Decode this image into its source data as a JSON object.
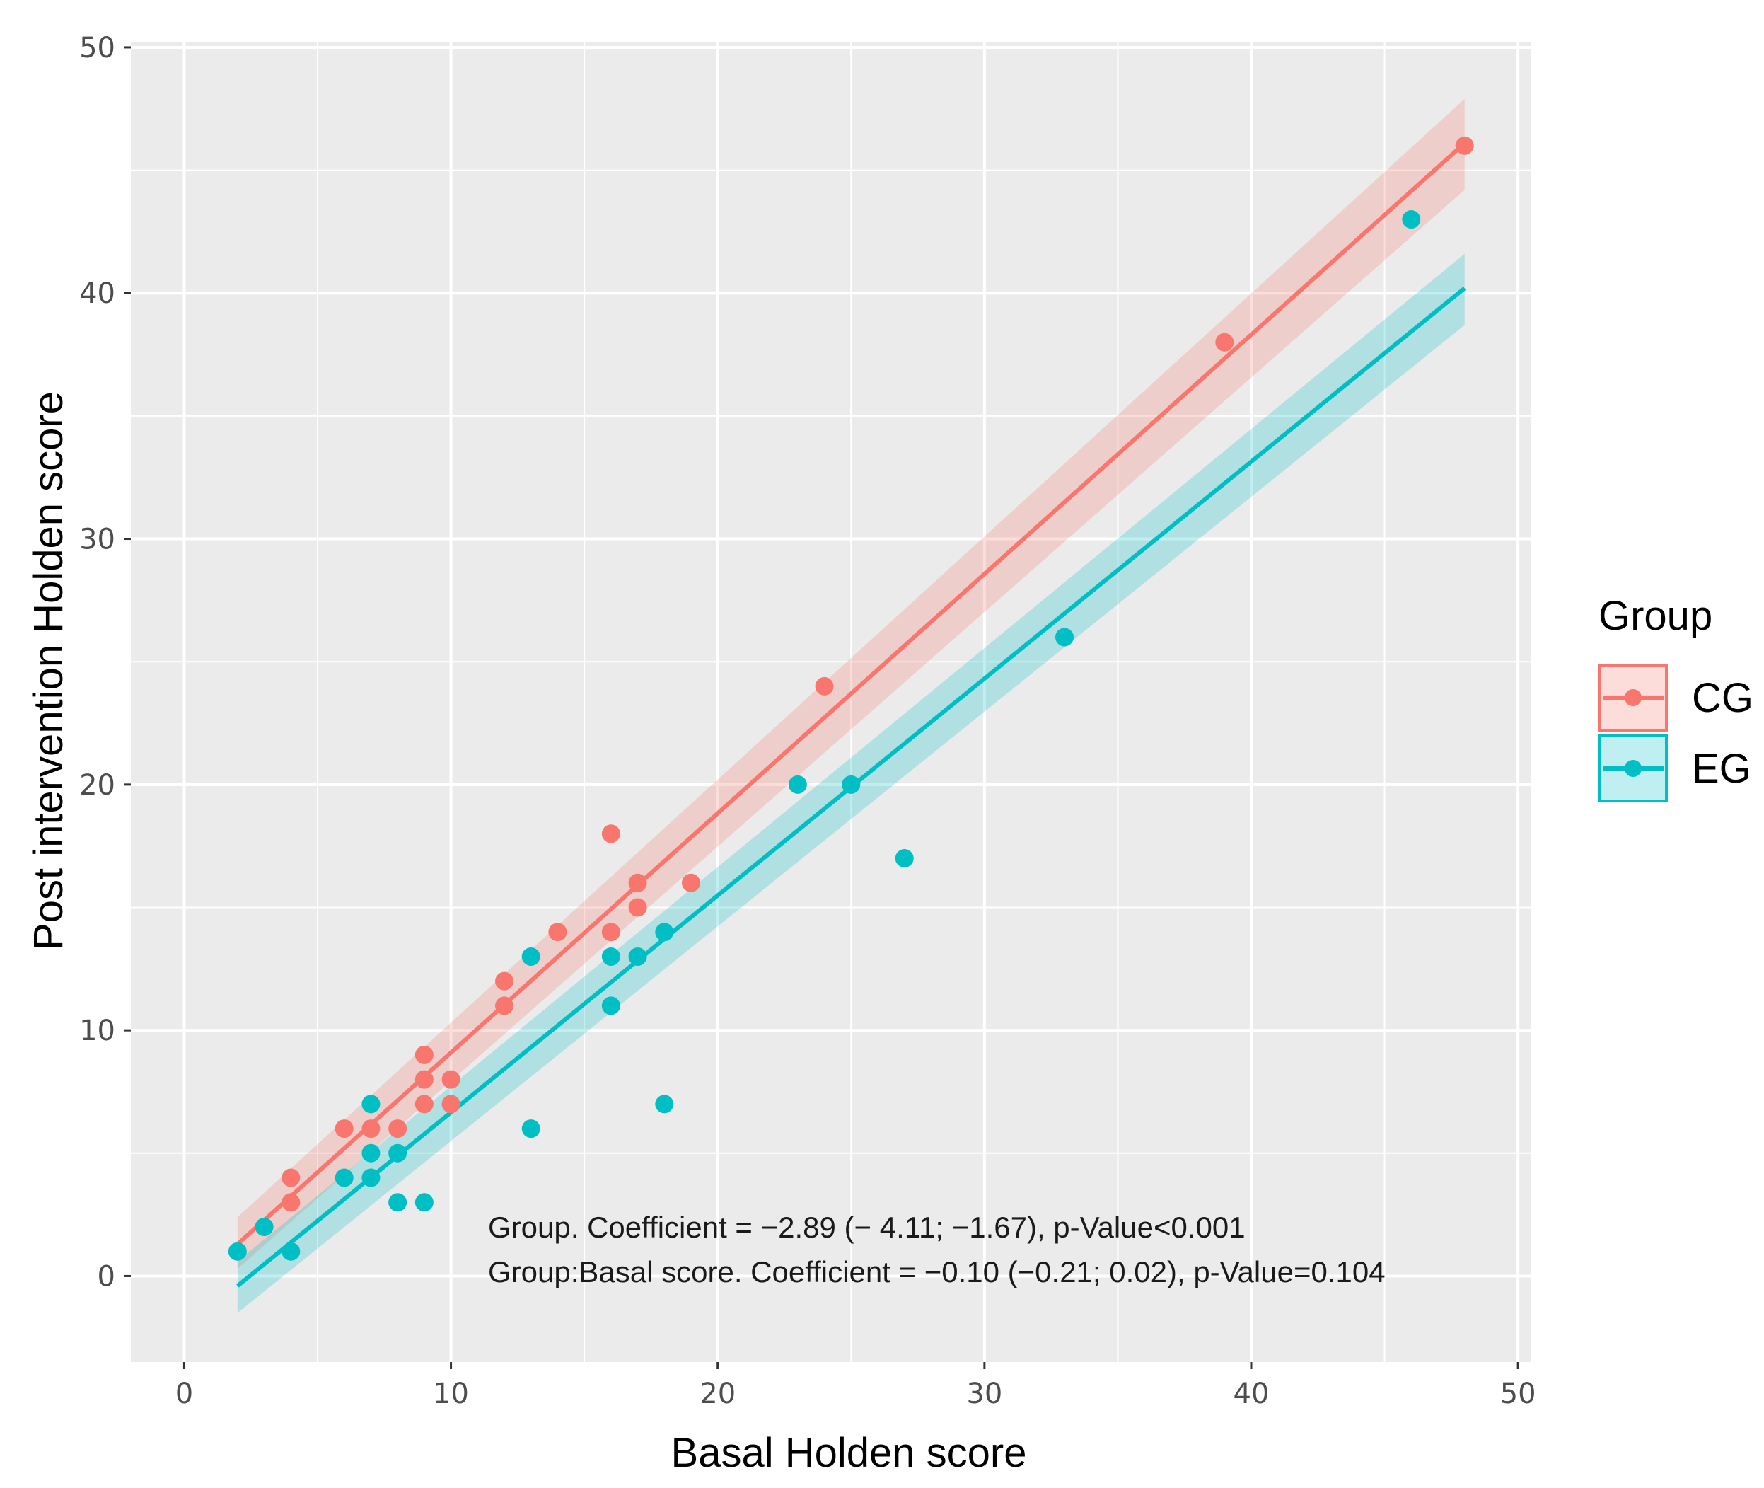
{
  "chart_data": {
    "type": "scatter",
    "title": "",
    "xlabel": "Basal Holden score",
    "ylabel": "Post intervention Holden score",
    "xlim": [
      -2,
      50.5
    ],
    "ylim": [
      -3.5,
      50.2
    ],
    "x_ticks": [
      0,
      10,
      20,
      30,
      40,
      50
    ],
    "y_ticks": [
      0,
      10,
      20,
      30,
      40,
      50
    ],
    "grid": true,
    "legend": {
      "title": "Group",
      "position": "right"
    },
    "series": [
      {
        "name": "CG",
        "color": "#F8766D",
        "points": [
          [
            3,
            2
          ],
          [
            4,
            4
          ],
          [
            4,
            3
          ],
          [
            6,
            6
          ],
          [
            7,
            6
          ],
          [
            8,
            6
          ],
          [
            9,
            9
          ],
          [
            9,
            8
          ],
          [
            9,
            7
          ],
          [
            10,
            8
          ],
          [
            10,
            7
          ],
          [
            12,
            12
          ],
          [
            12,
            11
          ],
          [
            14,
            14
          ],
          [
            16,
            18
          ],
          [
            16,
            14
          ],
          [
            17,
            16
          ],
          [
            17,
            15
          ],
          [
            19,
            16
          ],
          [
            24,
            24
          ],
          [
            39,
            38
          ],
          [
            48,
            46
          ]
        ],
        "fit": {
          "x": [
            2,
            48
          ],
          "y": [
            1.3,
            46.1
          ]
        },
        "ci": {
          "x": [
            2,
            48
          ],
          "lower": [
            0.3,
            44.2
          ],
          "upper": [
            2.4,
            47.9
          ]
        }
      },
      {
        "name": "EG",
        "color": "#00BFC4",
        "points": [
          [
            2,
            1
          ],
          [
            3,
            2
          ],
          [
            4,
            1
          ],
          [
            6,
            4
          ],
          [
            7,
            7
          ],
          [
            7,
            5
          ],
          [
            7,
            4
          ],
          [
            8,
            5
          ],
          [
            8,
            3
          ],
          [
            9,
            3
          ],
          [
            13,
            13
          ],
          [
            13,
            6
          ],
          [
            16,
            13
          ],
          [
            16,
            11
          ],
          [
            17,
            13
          ],
          [
            18,
            14
          ],
          [
            18,
            7
          ],
          [
            23,
            20
          ],
          [
            25,
            20
          ],
          [
            27,
            17
          ],
          [
            33,
            26
          ],
          [
            46,
            43
          ]
        ],
        "fit": {
          "x": [
            2,
            48
          ],
          "y": [
            -0.4,
            40.2
          ]
        },
        "ci": {
          "x": [
            2,
            48
          ],
          "lower": [
            -1.5,
            38.7
          ],
          "upper": [
            0.6,
            41.6
          ]
        }
      }
    ],
    "annotations": [
      "Group. Coefficient = −2.89 (− 4.11; −1.67), p-Value<0.001",
      "Group:Basal score. Coefficient = −0.10 (−0.21; 0.02), p-Value=0.104"
    ]
  }
}
